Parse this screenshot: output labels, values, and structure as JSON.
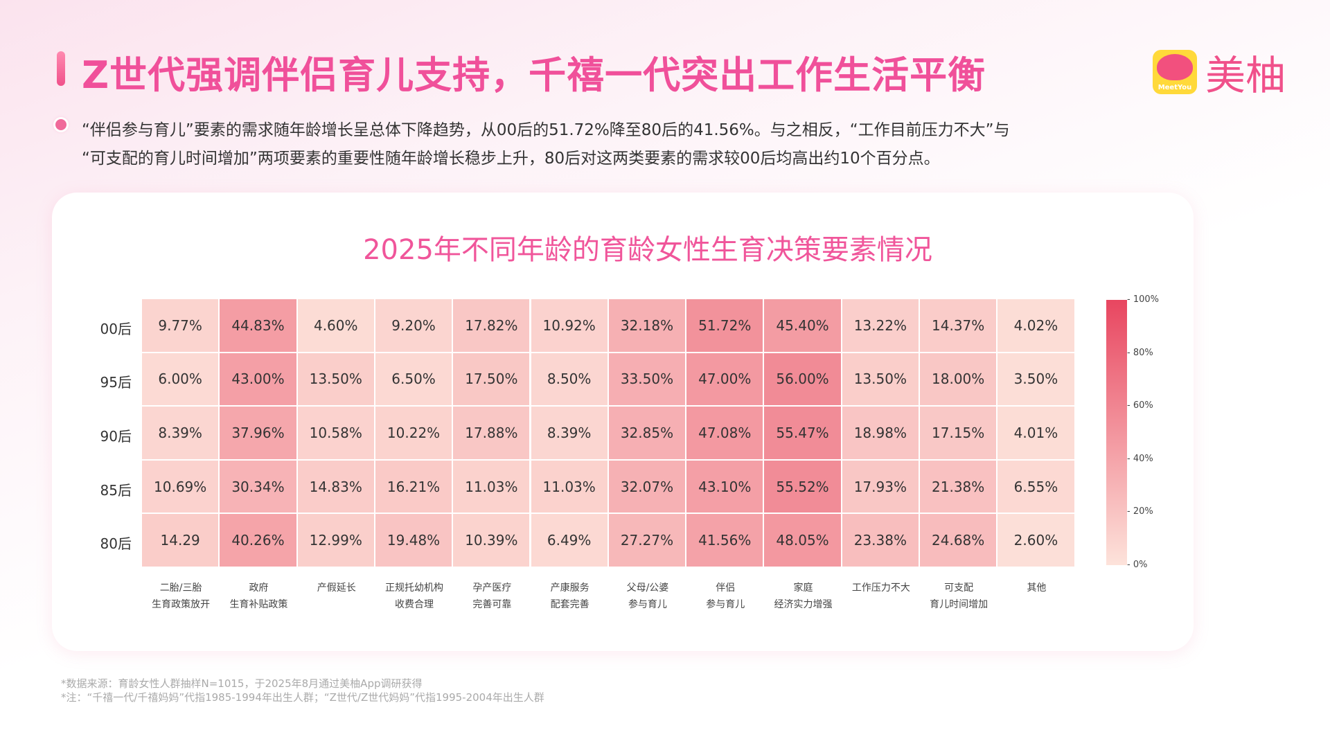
{
  "header": {
    "title": "Z世代强调伴侣育儿支持，千禧一代突出工作生活平衡",
    "logo_badge": "MeetYou",
    "logo_text": "美柚"
  },
  "summary": [
    "“伴侣参与育儿”要素的需求随年龄增长呈总体下降趋势，从00后的51.72%降至80后的41.56%。与之相反，“工作目前压力不大”与",
    "“可支配的育儿时间增加”两项要素的重要性随年龄增长稳步上升，80后对这两类要素的需求较00后均高出约10个百分点。"
  ],
  "chart_data": {
    "type": "heatmap",
    "title": "2025年不同年龄的育龄女性生育决策要素情况",
    "rows": [
      "00后",
      "95后",
      "90后",
      "85后",
      "80后"
    ],
    "columns": [
      [
        "二胎/三胎",
        "生育政策放开"
      ],
      [
        "政府",
        "生育补贴政策"
      ],
      [
        "产假延长",
        ""
      ],
      [
        "正规托幼机构",
        "收费合理"
      ],
      [
        "孕产医疗",
        "完善可靠"
      ],
      [
        "产康服务",
        "配套完善"
      ],
      [
        "父母/公婆",
        "参与育儿"
      ],
      [
        "伴侣",
        "参与育儿"
      ],
      [
        "家庭",
        "经济实力增强"
      ],
      [
        "工作压力不大",
        ""
      ],
      [
        "可支配",
        "育儿时间增加"
      ],
      [
        "其他",
        ""
      ]
    ],
    "labels": [
      [
        "9.77%",
        "44.83%",
        "4.60%",
        "9.20%",
        "17.82%",
        "10.92%",
        "32.18%",
        "51.72%",
        "45.40%",
        "13.22%",
        "14.37%",
        "4.02%"
      ],
      [
        "6.00%",
        "43.00%",
        "13.50%",
        "6.50%",
        "17.50%",
        "8.50%",
        "33.50%",
        "47.00%",
        "56.00%",
        "13.50%",
        "18.00%",
        "3.50%"
      ],
      [
        "8.39%",
        "37.96%",
        "10.58%",
        "10.22%",
        "17.88%",
        "8.39%",
        "32.85%",
        "47.08%",
        "55.47%",
        "18.98%",
        "17.15%",
        "4.01%"
      ],
      [
        "10.69%",
        "30.34%",
        "14.83%",
        "16.21%",
        "11.03%",
        "11.03%",
        "32.07%",
        "43.10%",
        "55.52%",
        "17.93%",
        "21.38%",
        "6.55%"
      ],
      [
        "14.29",
        "40.26%",
        "12.99%",
        "19.48%",
        "10.39%",
        "6.49%",
        "27.27%",
        "41.56%",
        "48.05%",
        "23.38%",
        "24.68%",
        "2.60%"
      ]
    ],
    "colorbar": {
      "range": [
        0,
        100
      ],
      "ticks": [
        "100%",
        "80%",
        "60%",
        "40%",
        "20%",
        "0%"
      ],
      "low_color": "#fde3db",
      "high_color": "#e84660"
    }
  },
  "footnotes": [
    "*数据来源：育龄女性人群抽样N=1015，于2025年8月通过美柚App调研获得",
    "*注：“千禧一代/千禧妈妈”代指1985-1994年出生人群；“Z世代/Z世代妈妈”代指1995-2004年出生人群"
  ]
}
